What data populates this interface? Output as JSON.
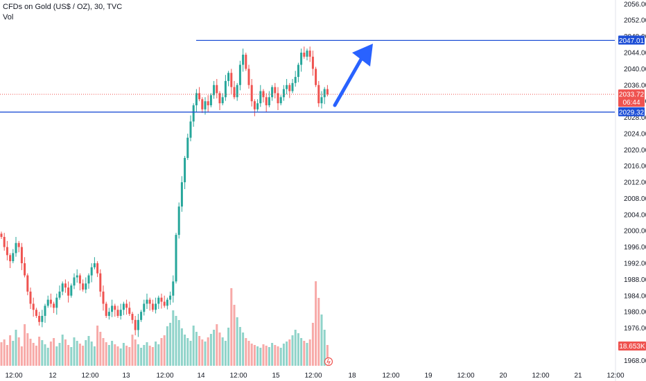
{
  "header": {
    "title": "CFDs on Gold (US$ / OZ), 30, TVC",
    "volume_label": "Vol"
  },
  "colors": {
    "up": "#26a69a",
    "down": "#ef5350",
    "volume_up": "#8fd3c9",
    "volume_down": "#f7a9a7",
    "level_line": "#1e4fd6",
    "arrow": "#2962ff",
    "price_tag": "#ef5350"
  },
  "chart_data": {
    "type": "candlestick",
    "symbol": "CFDs on Gold (US$ / OZ)",
    "timeframe": "30",
    "source": "TVC",
    "y_axis": {
      "range": [
        1966,
        2057
      ],
      "ticks": [
        2056,
        2052,
        2048,
        2044,
        2040,
        2036,
        2032,
        2028,
        2024,
        2020,
        2016,
        2012,
        2008,
        2004,
        2000,
        1996,
        1992,
        1988,
        1984,
        1980,
        1976,
        1972,
        1968
      ]
    },
    "x_axis": {
      "ticks": [
        "12:00",
        "12",
        "12:00",
        "13",
        "12:00",
        "14",
        "12:00",
        "15",
        "12:00",
        "18",
        "12:00",
        "19",
        "12:00",
        "20",
        "12:00",
        "21",
        "12:00"
      ]
    },
    "horizontal_levels": [
      {
        "value": 2047.01,
        "label": "2047.01"
      },
      {
        "value": 2029.32,
        "label": "2029.32"
      }
    ],
    "last_price": {
      "value": 2033.72,
      "label": "2033.72",
      "countdown": "06:44"
    },
    "last_volume": {
      "label": "18.653K"
    },
    "closes": [
      1998.5,
      1996.0,
      1994.0,
      1992.5,
      1994.5,
      1997.0,
      1996.0,
      1992.0,
      1989.0,
      1985.0,
      1982.0,
      1980.5,
      1979.0,
      1977.5,
      1979.0,
      1981.5,
      1983.0,
      1982.0,
      1981.0,
      1983.5,
      1985.0,
      1987.0,
      1986.0,
      1984.0,
      1986.5,
      1988.5,
      1989.0,
      1987.0,
      1985.5,
      1987.0,
      1989.0,
      1991.0,
      1992.0,
      1989.5,
      1985.0,
      1982.0,
      1979.0,
      1980.0,
      1981.5,
      1980.5,
      1979.0,
      1980.5,
      1982.0,
      1981.0,
      1979.5,
      1978.0,
      1975.5,
      1978.0,
      1980.0,
      1982.0,
      1983.0,
      1982.0,
      1980.5,
      1982.0,
      1983.5,
      1982.5,
      1981.5,
      1983.0,
      1984.0,
      1987.5,
      1999.0,
      2006.0,
      2012.0,
      2018.0,
      2023.0,
      2027.0,
      2031.0,
      2034.0,
      2032.5,
      2030.0,
      2032.0,
      2031.0,
      2033.5,
      2036.0,
      2034.0,
      2031.5,
      2033.0,
      2037.0,
      2039.0,
      2035.5,
      2033.0,
      2036.0,
      2041.0,
      2043.5,
      2040.0,
      2036.0,
      2032.0,
      2030.0,
      2031.5,
      2034.5,
      2033.0,
      2031.0,
      2033.0,
      2035.5,
      2034.0,
      2031.5,
      2033.0,
      2035.0,
      2036.0,
      2034.5,
      2036.5,
      2038.0,
      2041.0,
      2044.0,
      2043.0,
      2044.5,
      2043.0,
      2040.0,
      2036.0,
      2031.5,
      2033.0,
      2035.0,
      2033.7
    ],
    "volumes": [
      34,
      38,
      30,
      44,
      36,
      52,
      41,
      28,
      60,
      47,
      39,
      33,
      29,
      42,
      37,
      31,
      26,
      35,
      40,
      28,
      33,
      45,
      38,
      30,
      27,
      41,
      36,
      32,
      29,
      37,
      43,
      35,
      28,
      58,
      49,
      40,
      34,
      30,
      36,
      31,
      28,
      25,
      33,
      29,
      27,
      45,
      38,
      31,
      26,
      30,
      34,
      29,
      27,
      35,
      31,
      40,
      44,
      57,
      62,
      80,
      72,
      66,
      54,
      45,
      40,
      36,
      58,
      49,
      43,
      38,
      35,
      41,
      46,
      52,
      60,
      48,
      41,
      36,
      55,
      112,
      88,
      70,
      56,
      48,
      40,
      36,
      32,
      30,
      28,
      26,
      31,
      29,
      27,
      33,
      30,
      28,
      26,
      32,
      35,
      38,
      44,
      52,
      47,
      40,
      36,
      33,
      38,
      62,
      122,
      98,
      74,
      52,
      30
    ]
  }
}
